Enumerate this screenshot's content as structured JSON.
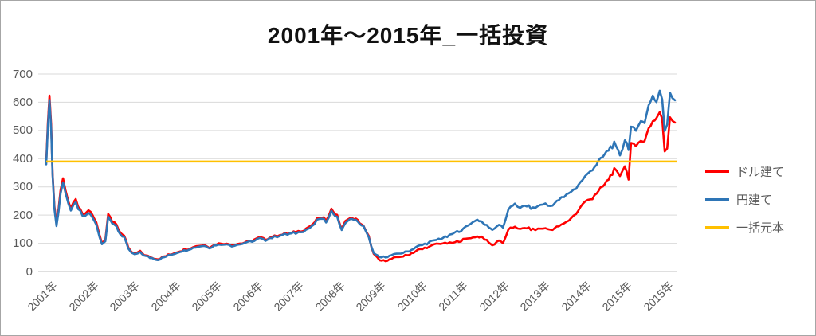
{
  "chart_data": {
    "type": "line",
    "title": "2001年～2015年_一括投資",
    "y_ticks": [
      0,
      100,
      200,
      300,
      400,
      500,
      600,
      700
    ],
    "ylim": [
      0,
      700
    ],
    "x_tick_labels": [
      "2001年",
      "2002年",
      "2003年",
      "2004年",
      "2005年",
      "2006年",
      "2007年",
      "2008年",
      "2009年",
      "2010年",
      "2011年",
      "2012年",
      "2013年",
      "2014年",
      "2015年",
      "2015年"
    ],
    "grid": true,
    "legend_position": "right",
    "colors": {
      "dollar": "#ff0000",
      "yen": "#2e75b6",
      "principal": "#ffc000",
      "gridline": "#d9d9d9",
      "axis_line": "#bfbfbf",
      "tick_text": "#595959",
      "title_text": "#111111",
      "frame_border": "#a6a6a6"
    },
    "u": [
      0.0,
      0.04,
      0.08,
      0.12,
      0.155,
      0.2,
      0.25,
      0.3,
      0.35,
      0.41,
      0.47,
      0.54,
      0.6,
      0.66,
      0.72,
      0.78,
      0.83,
      0.89,
      0.95,
      1.03,
      1.13,
      1.22,
      1.3,
      1.36,
      1.44,
      1.51,
      1.56,
      1.61,
      1.71,
      1.81,
      1.9,
      2.0,
      2.08,
      2.16,
      2.29,
      2.43,
      2.58,
      2.72,
      2.87,
      3.07,
      3.26,
      3.46,
      3.65,
      3.84,
      3.98,
      4.14,
      4.33,
      4.52,
      4.72,
      4.91,
      5.07,
      5.2,
      5.34,
      5.5,
      5.69,
      5.88,
      6.08,
      6.27,
      6.47,
      6.66,
      6.82,
      6.95,
      7.09,
      7.2,
      7.34,
      7.5,
      7.59,
      7.73,
      7.86,
      7.98,
      8.12,
      8.27,
      8.41,
      8.6,
      8.8,
      9.05,
      9.28,
      9.51,
      9.77,
      9.96,
      10.16,
      10.35,
      10.5,
      10.64,
      10.78,
      10.87,
      11.03,
      11.13,
      11.26,
      11.42,
      11.55,
      11.71,
      11.86,
      12.1,
      12.29,
      12.49,
      12.68,
      12.91,
      13.07,
      13.26,
      13.46,
      13.61,
      13.75,
      13.84,
      13.98,
      14.1,
      14.19,
      14.25,
      14.37,
      14.49,
      14.58,
      14.68,
      14.78,
      14.87,
      14.95,
      15.01,
      15.07,
      15.13,
      15.2,
      15.26,
      15.32
    ],
    "series": [
      {
        "name": "ドル建て",
        "color": "#ff0000",
        "values": [
          395,
          520,
          630,
          520,
          350,
          230,
          172,
          225,
          290,
          330,
          285,
          245,
          226,
          240,
          252,
          230,
          218,
          205,
          202,
          218,
          198,
          175,
          130,
          102,
          112,
          210,
          195,
          178,
          165,
          138,
          128,
          82,
          70,
          63,
          70,
          56,
          49,
          43,
          53,
          63,
          73,
          81,
          90,
          94,
          87,
          97,
          100,
          95,
          99,
          106,
          112,
          120,
          114,
          124,
          130,
          134,
          140,
          147,
          163,
          193,
          183,
          220,
          198,
          152,
          188,
          190,
          180,
          162,
          122,
          62,
          40,
          38,
          45,
          52,
          58,
          75,
          85,
          98,
          100,
          103,
          112,
          120,
          124,
          118,
          105,
          92,
          110,
          100,
          145,
          162,
          150,
          155,
          148,
          152,
          148,
          160,
          175,
          205,
          240,
          255,
          285,
          310,
          340,
          360,
          341,
          375,
          332,
          453,
          440,
          470,
          460,
          510,
          535,
          545,
          565,
          540,
          423,
          440,
          550,
          535,
          528
        ]
      },
      {
        "name": "円建て",
        "color": "#2e75b6",
        "values": [
          390,
          510,
          616,
          505,
          341,
          222,
          160,
          215,
          278,
          315,
          274,
          236,
          218,
          231,
          242,
          221,
          210,
          197,
          194,
          209,
          190,
          168,
          124,
          97,
          107,
          200,
          186,
          170,
          158,
          132,
          122,
          78,
          67,
          60,
          67,
          54,
          47,
          41,
          51,
          61,
          70,
          78,
          87,
          91,
          84,
          94,
          97,
          92,
          96,
          103,
          109,
          117,
          111,
          121,
          127,
          131,
          137,
          144,
          159,
          188,
          178,
          213,
          192,
          148,
          183,
          186,
          176,
          159,
          120,
          64,
          50,
          52,
          57,
          63,
          70,
          89,
          100,
          112,
          124,
          136,
          150,
          172,
          185,
          172,
          158,
          146,
          168,
          155,
          215,
          245,
          222,
          235,
          222,
          240,
          232,
          252,
          270,
          298,
          325,
          355,
          390,
          415,
          440,
          450,
          416,
          465,
          440,
          515,
          495,
          540,
          525,
          590,
          620,
          600,
          640,
          610,
          494,
          520,
          635,
          615,
          607
        ]
      },
      {
        "name": "一括元本",
        "color": "#ffc000",
        "constant": 390
      }
    ]
  }
}
